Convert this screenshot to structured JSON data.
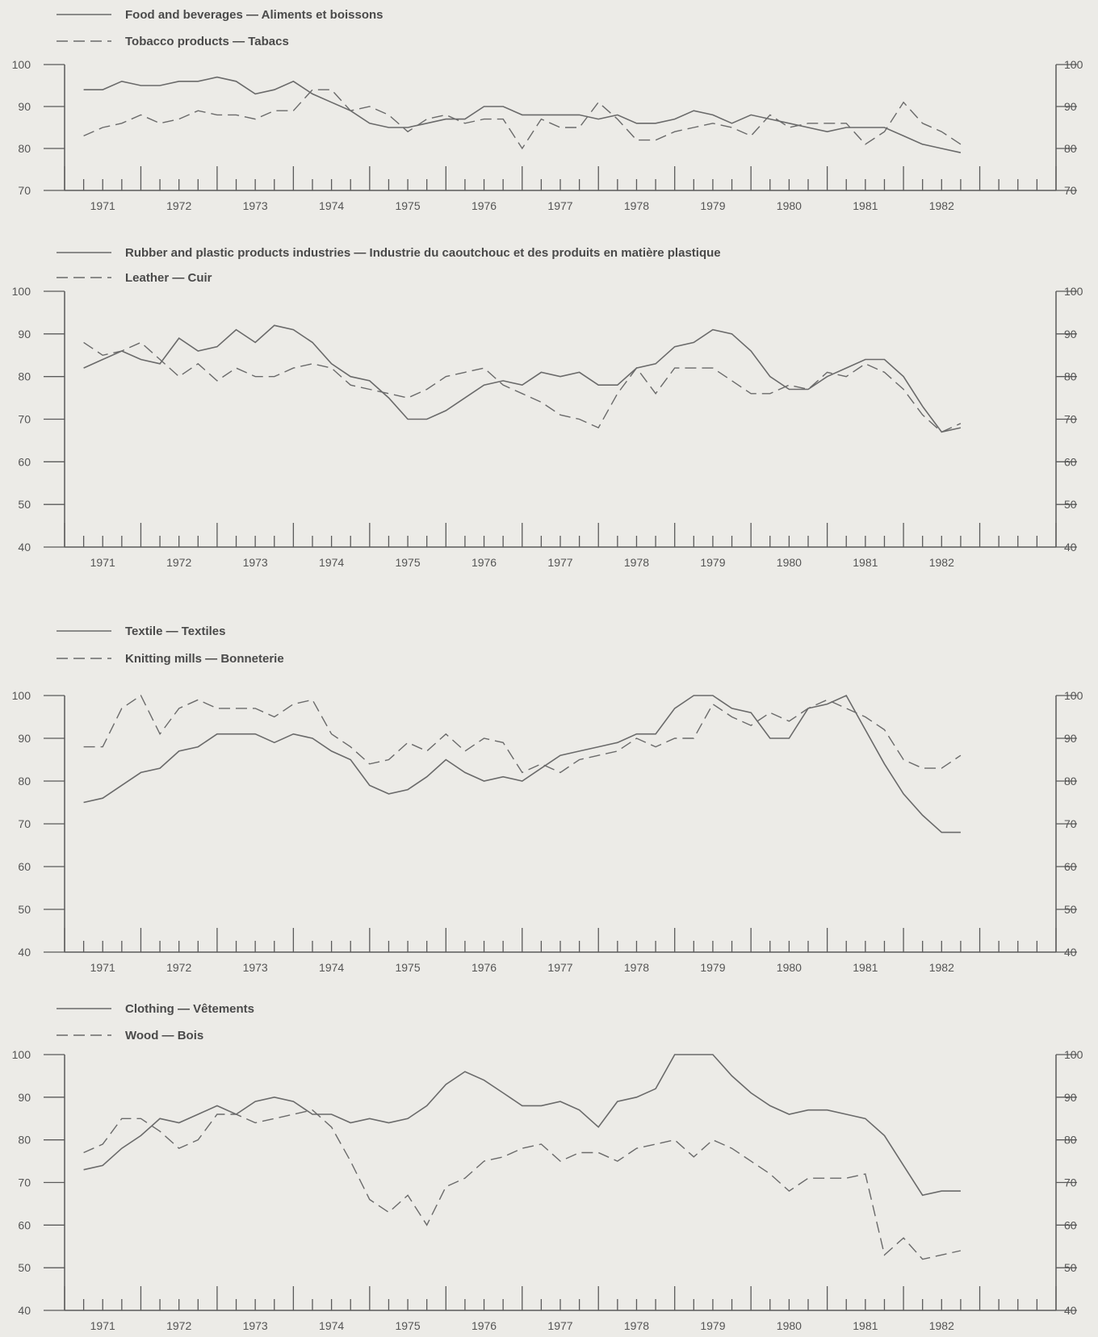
{
  "chart_data": [
    {
      "type": "line",
      "x": [
        1970.75,
        1971.0,
        1971.25,
        1971.5,
        1971.75,
        1972.0,
        1972.25,
        1972.5,
        1972.75,
        1973.0,
        1973.25,
        1973.5,
        1973.75,
        1974.0,
        1974.25,
        1974.5,
        1974.75,
        1975.0,
        1975.25,
        1975.5,
        1975.75,
        1976.0,
        1976.25,
        1976.5,
        1976.75,
        1977.0,
        1977.25,
        1977.5,
        1977.75,
        1978.0,
        1978.25,
        1978.5,
        1978.75,
        1979.0,
        1979.25,
        1979.5,
        1979.75,
        1980.0,
        1980.25,
        1980.5,
        1980.75,
        1981.0,
        1981.25,
        1981.5,
        1981.75,
        1982.0,
        1982.25
      ],
      "series": [
        {
          "name": "Food and beverages — Aliments et boissons",
          "style": "solid",
          "values": [
            94,
            94,
            96,
            95,
            95,
            96,
            96,
            97,
            96,
            93,
            94,
            96,
            93,
            91,
            89,
            86,
            85,
            85,
            86,
            87,
            87,
            90,
            90,
            88,
            88,
            88,
            88,
            87,
            88,
            86,
            86,
            87,
            89,
            88,
            86,
            88,
            87,
            86,
            85,
            84,
            85,
            85,
            85,
            83,
            81,
            80,
            79
          ]
        },
        {
          "name": "Tobacco products — Tabacs",
          "style": "dashed",
          "values": [
            83,
            85,
            86,
            88,
            86,
            87,
            89,
            88,
            88,
            87,
            89,
            89,
            94,
            94,
            89,
            90,
            88,
            84,
            87,
            88,
            86,
            87,
            87,
            80,
            87,
            85,
            85,
            91,
            87,
            82,
            82,
            84,
            85,
            86,
            85,
            83,
            88,
            85,
            86,
            86,
            86,
            81,
            84,
            91,
            86,
            84,
            81
          ]
        }
      ],
      "ylim": [
        70,
        100
      ],
      "yticks": [
        70,
        80,
        90,
        100
      ],
      "xtick_labels": [
        "1971",
        "1972",
        "1973",
        "1974",
        "1975",
        "1976",
        "1977",
        "1978",
        "1979",
        "1980",
        "1981",
        "1982"
      ]
    },
    {
      "type": "line",
      "x": [
        1970.75,
        1971.0,
        1971.25,
        1971.5,
        1971.75,
        1972.0,
        1972.25,
        1972.5,
        1972.75,
        1973.0,
        1973.25,
        1973.5,
        1973.75,
        1974.0,
        1974.25,
        1974.5,
        1974.75,
        1975.0,
        1975.25,
        1975.5,
        1975.75,
        1976.0,
        1976.25,
        1976.5,
        1976.75,
        1977.0,
        1977.25,
        1977.5,
        1977.75,
        1978.0,
        1978.25,
        1978.5,
        1978.75,
        1979.0,
        1979.25,
        1979.5,
        1979.75,
        1980.0,
        1980.25,
        1980.5,
        1980.75,
        1981.0,
        1981.25,
        1981.5,
        1981.75,
        1982.0,
        1982.25
      ],
      "series": [
        {
          "name": "Rubber and plastic products industries — Industrie du caoutchouc et des produits en matière plastique",
          "style": "solid",
          "values": [
            82,
            84,
            86,
            84,
            83,
            89,
            86,
            87,
            91,
            88,
            92,
            91,
            88,
            83,
            80,
            79,
            75,
            70,
            70,
            72,
            75,
            78,
            79,
            78,
            81,
            80,
            81,
            78,
            78,
            82,
            83,
            87,
            88,
            91,
            90,
            86,
            80,
            77,
            77,
            80,
            82,
            84,
            84,
            80,
            73,
            67,
            68
          ]
        },
        {
          "name": "Leather — Cuir",
          "style": "dashed",
          "values": [
            88,
            85,
            86,
            88,
            84,
            80,
            83,
            79,
            82,
            80,
            80,
            82,
            83,
            82,
            78,
            77,
            76,
            75,
            77,
            80,
            81,
            82,
            78,
            76,
            74,
            71,
            70,
            68,
            76,
            82,
            76,
            82,
            82,
            82,
            79,
            76,
            76,
            78,
            77,
            81,
            80,
            83,
            81,
            77,
            71,
            67,
            69
          ]
        }
      ],
      "ylim": [
        40,
        100
      ],
      "yticks": [
        40,
        50,
        60,
        70,
        80,
        90,
        100
      ],
      "xtick_labels": [
        "1971",
        "1972",
        "1973",
        "1974",
        "1975",
        "1976",
        "1977",
        "1978",
        "1979",
        "1980",
        "1981",
        "1982"
      ]
    },
    {
      "type": "line",
      "x": [
        1970.75,
        1971.0,
        1971.25,
        1971.5,
        1971.75,
        1972.0,
        1972.25,
        1972.5,
        1972.75,
        1973.0,
        1973.25,
        1973.5,
        1973.75,
        1974.0,
        1974.25,
        1974.5,
        1974.75,
        1975.0,
        1975.25,
        1975.5,
        1975.75,
        1976.0,
        1976.25,
        1976.5,
        1976.75,
        1977.0,
        1977.25,
        1977.5,
        1977.75,
        1978.0,
        1978.25,
        1978.5,
        1978.75,
        1979.0,
        1979.25,
        1979.5,
        1979.75,
        1980.0,
        1980.25,
        1980.5,
        1980.75,
        1981.0,
        1981.25,
        1981.5,
        1981.75,
        1982.0,
        1982.25
      ],
      "series": [
        {
          "name": "Textile — Textiles",
          "style": "solid",
          "values": [
            75,
            76,
            79,
            82,
            83,
            87,
            88,
            91,
            91,
            91,
            89,
            91,
            90,
            87,
            85,
            79,
            77,
            78,
            81,
            85,
            82,
            80,
            81,
            80,
            83,
            86,
            87,
            88,
            89,
            91,
            91,
            97,
            100,
            100,
            97,
            96,
            90,
            90,
            97,
            98,
            100,
            92,
            84,
            77,
            72,
            68,
            68
          ]
        },
        {
          "name": "Knitting mills — Bonneterie",
          "style": "dashed",
          "values": [
            88,
            88,
            97,
            100,
            91,
            97,
            99,
            97,
            97,
            97,
            95,
            98,
            99,
            91,
            88,
            84,
            85,
            89,
            87,
            91,
            87,
            90,
            89,
            82,
            84,
            82,
            85,
            86,
            87,
            90,
            88,
            90,
            90,
            98,
            95,
            93,
            96,
            94,
            97,
            99,
            97,
            95,
            92,
            85,
            83,
            83,
            86
          ]
        }
      ],
      "ylim": [
        40,
        100
      ],
      "yticks": [
        40,
        50,
        60,
        70,
        80,
        90,
        100
      ],
      "xtick_labels": [
        "1971",
        "1972",
        "1973",
        "1974",
        "1975",
        "1976",
        "1977",
        "1978",
        "1979",
        "1980",
        "1981",
        "1982"
      ]
    },
    {
      "type": "line",
      "x": [
        1970.75,
        1971.0,
        1971.25,
        1971.5,
        1971.75,
        1972.0,
        1972.25,
        1972.5,
        1972.75,
        1973.0,
        1973.25,
        1973.5,
        1973.75,
        1974.0,
        1974.25,
        1974.5,
        1974.75,
        1975.0,
        1975.25,
        1975.5,
        1975.75,
        1976.0,
        1976.25,
        1976.5,
        1976.75,
        1977.0,
        1977.25,
        1977.5,
        1977.75,
        1978.0,
        1978.25,
        1978.5,
        1978.75,
        1979.0,
        1979.25,
        1979.5,
        1979.75,
        1980.0,
        1980.25,
        1980.5,
        1980.75,
        1981.0,
        1981.25,
        1981.5,
        1981.75,
        1982.0,
        1982.25
      ],
      "series": [
        {
          "name": "Clothing — Vêtements",
          "style": "solid",
          "values": [
            73,
            74,
            78,
            81,
            85,
            84,
            86,
            88,
            86,
            89,
            90,
            89,
            86,
            86,
            84,
            85,
            84,
            85,
            88,
            93,
            96,
            94,
            91,
            88,
            88,
            89,
            87,
            83,
            89,
            90,
            92,
            100,
            100,
            100,
            95,
            91,
            88,
            86,
            87,
            87,
            86,
            85,
            81,
            74,
            67,
            68,
            68
          ]
        },
        {
          "name": "Wood — Bois",
          "style": "dashed",
          "values": [
            77,
            79,
            85,
            85,
            82,
            78,
            80,
            86,
            86,
            84,
            85,
            86,
            87,
            83,
            75,
            66,
            63,
            67,
            60,
            69,
            71,
            75,
            76,
            78,
            79,
            75,
            77,
            77,
            75,
            78,
            79,
            80,
            76,
            80,
            78,
            75,
            72,
            68,
            71,
            71,
            71,
            72,
            53,
            57,
            52,
            53,
            54
          ]
        }
      ],
      "ylim": [
        40,
        100
      ],
      "yticks": [
        40,
        50,
        60,
        70,
        80,
        90,
        100
      ],
      "xtick_labels": [
        "1971",
        "1972",
        "1973",
        "1974",
        "1975",
        "1976",
        "1977",
        "1978",
        "1979",
        "1980",
        "1981",
        "1982"
      ]
    }
  ]
}
